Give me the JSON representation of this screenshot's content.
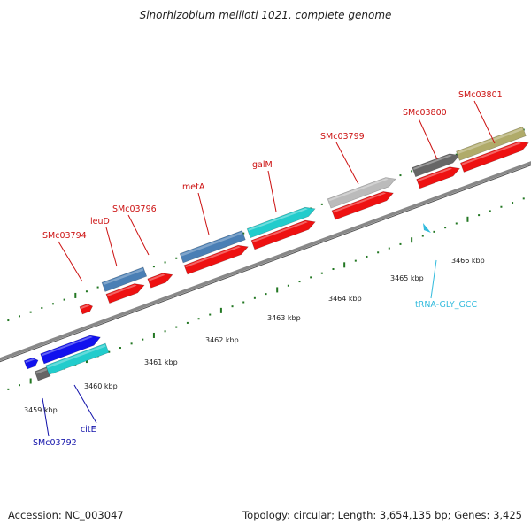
{
  "title": "Sinorhizobium meliloti 1021, complete genome",
  "footer": {
    "accession": "Accession: NC_003047",
    "summary": "Topology: circular; Length: 3,654,135 bp; Genes: 3,425"
  },
  "ruler": {
    "unit": "kbp",
    "ticks": [
      "3459 kbp",
      "3460 kbp",
      "3461 kbp",
      "3462 kbp",
      "3463 kbp",
      "3464 kbp",
      "3465 kbp",
      "3466 kbp"
    ]
  },
  "colors": {
    "cds_red": "#ee1111",
    "cds_blue": "#1111ee",
    "cds_cyan": "#22cccc",
    "steel_blue": "#4a7fb5",
    "gray": "#666666",
    "light_gray": "#bbbbbb",
    "olive": "#b0ab6a",
    "trna": "#33bbdd",
    "tick_green": "#227722",
    "backbone": "#888888"
  },
  "labels": [
    {
      "text": "SMc03794",
      "color": "#cc1111"
    },
    {
      "text": "leuD",
      "color": "#cc1111"
    },
    {
      "text": "SMc03796",
      "color": "#cc1111"
    },
    {
      "text": "metA",
      "color": "#cc1111"
    },
    {
      "text": "galM",
      "color": "#cc1111"
    },
    {
      "text": "SMc03799",
      "color": "#cc1111"
    },
    {
      "text": "SMc03800",
      "color": "#cc1111"
    },
    {
      "text": "SMc03801",
      "color": "#cc1111"
    },
    {
      "text": "tRNA-GLY_GCC",
      "color": "#33bbdd"
    },
    {
      "text": "SMc03792",
      "color": "#1111aa"
    },
    {
      "text": "citE",
      "color": "#1111aa"
    }
  ]
}
